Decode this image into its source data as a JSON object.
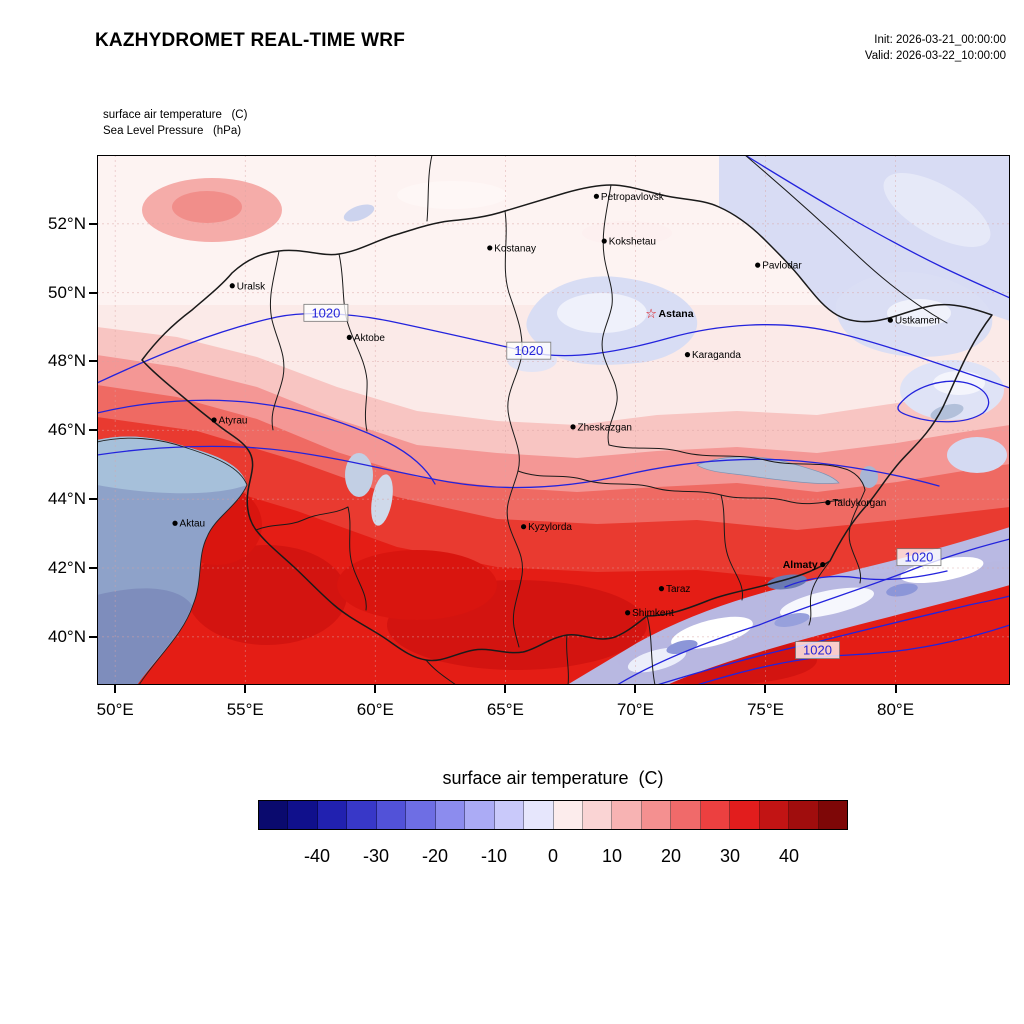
{
  "header": {
    "title": "KAZHYDROMET REAL-TIME WRF",
    "init_line": "Init: 2026-03-21_00:00:00",
    "valid_line": "Valid: 2026-03-22_10:00:00"
  },
  "subtitle": {
    "line1": "surface air temperature   (C)",
    "line2": "Sea Level Pressure   (hPa)"
  },
  "map": {
    "extent": {
      "lon_min": 49.3,
      "lon_max": 84.4,
      "lat_min": 38.6,
      "lat_max": 54.0
    },
    "cities": [
      {
        "name": "Petropavlovsk",
        "lon": 68.5,
        "lat": 52.8
      },
      {
        "name": "Kostanay",
        "lon": 64.4,
        "lat": 51.3
      },
      {
        "name": "Kokshetau",
        "lon": 68.8,
        "lat": 51.5
      },
      {
        "name": "Pavlodar",
        "lon": 74.7,
        "lat": 50.8
      },
      {
        "name": "Uralsk",
        "lon": 54.5,
        "lat": 50.2
      },
      {
        "name": "Astana",
        "lon": 70.6,
        "lat": 49.4,
        "marker": "star",
        "bold": true
      },
      {
        "name": "Aktobe",
        "lon": 59.0,
        "lat": 48.7
      },
      {
        "name": "Ustkamen",
        "lon": 79.8,
        "lat": 49.2
      },
      {
        "name": "Karaganda",
        "lon": 72.0,
        "lat": 48.2
      },
      {
        "name": "Atyrau",
        "lon": 53.8,
        "lat": 46.3
      },
      {
        "name": "Zheskazgan",
        "lon": 67.6,
        "lat": 46.1
      },
      {
        "name": "Taldykorgan",
        "lon": 77.4,
        "lat": 43.9
      },
      {
        "name": "Aktau",
        "lon": 52.3,
        "lat": 43.3
      },
      {
        "name": "Kyzylorda",
        "lon": 65.7,
        "lat": 43.2
      },
      {
        "name": "Almaty",
        "lon": 77.2,
        "lat": 42.1,
        "bold": true,
        "label_side": "left"
      },
      {
        "name": "Taraz",
        "lon": 71.0,
        "lat": 41.4
      },
      {
        "name": "Shimkent",
        "lon": 69.7,
        "lat": 40.7
      }
    ],
    "pressure_labels": [
      {
        "text": "1020",
        "lon": 58.1,
        "lat": 49.4
      },
      {
        "text": "1020",
        "lon": 65.9,
        "lat": 48.3
      },
      {
        "text": "1020",
        "lon": 80.9,
        "lat": 42.3
      },
      {
        "text": "1020",
        "lon": 77.0,
        "lat": 39.6
      }
    ]
  },
  "axes": {
    "lat_ticks": [
      {
        "value": 52,
        "label": "52°N"
      },
      {
        "value": 50,
        "label": "50°N"
      },
      {
        "value": 48,
        "label": "48°N"
      },
      {
        "value": 46,
        "label": "46°N"
      },
      {
        "value": 44,
        "label": "44°N"
      },
      {
        "value": 42,
        "label": "42°N"
      },
      {
        "value": 40,
        "label": "40°N"
      }
    ],
    "lon_ticks": [
      {
        "value": 50,
        "label": "50°E"
      },
      {
        "value": 55,
        "label": "55°E"
      },
      {
        "value": 60,
        "label": "60°E"
      },
      {
        "value": 65,
        "label": "65°E"
      },
      {
        "value": 70,
        "label": "70°E"
      },
      {
        "value": 75,
        "label": "75°E"
      },
      {
        "value": 80,
        "label": "80°E"
      }
    ]
  },
  "colorbar": {
    "title": "surface air temperature  (C)",
    "range_min": -50,
    "range_max": 50,
    "segment_colors": [
      "#0a0a6e",
      "#10108c",
      "#2121b0",
      "#3838c8",
      "#5252d8",
      "#6e6ee4",
      "#8c8cee",
      "#ababf5",
      "#c9c9fa",
      "#e6e6fc",
      "#fcecec",
      "#fad4d4",
      "#f7b3b3",
      "#f49090",
      "#f06a6a",
      "#ec4040",
      "#e21d1d",
      "#c21414",
      "#a00d0d",
      "#7e0707"
    ],
    "ticks": [
      {
        "value": -40,
        "label": "-40"
      },
      {
        "value": -30,
        "label": "-30"
      },
      {
        "value": -20,
        "label": "-20"
      },
      {
        "value": -10,
        "label": "-10"
      },
      {
        "value": 0,
        "label": "0"
      },
      {
        "value": 10,
        "label": "10"
      },
      {
        "value": 20,
        "label": "20"
      },
      {
        "value": 30,
        "label": "30"
      },
      {
        "value": 40,
        "label": "40"
      }
    ]
  }
}
